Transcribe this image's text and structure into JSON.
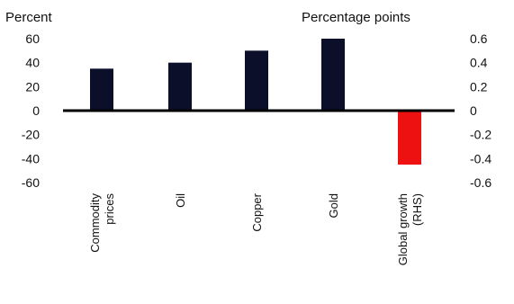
{
  "chart_data": {
    "type": "bar",
    "title": "",
    "left_axis_unit": "Percent",
    "right_axis_unit": "Percentage points",
    "categories": [
      [
        "Commodity",
        "prices"
      ],
      [
        "Oil"
      ],
      [
        "Copper"
      ],
      [
        "Gold"
      ],
      [
        "Global growth",
        "(RHS)"
      ]
    ],
    "series": [
      {
        "values": [
          35,
          40,
          50,
          60,
          null
        ],
        "color": "#0b0f2a",
        "axis": "left"
      },
      {
        "values": [
          null,
          null,
          null,
          null,
          -0.45
        ],
        "color": "#ee1111",
        "axis": "right"
      }
    ],
    "left_axis": {
      "ylim": [
        -60,
        60
      ],
      "ticks": [
        "60",
        "40",
        "20",
        "0",
        "-20",
        "-40",
        "-60"
      ]
    },
    "right_axis": {
      "ylim": [
        -0.6,
        0.6
      ],
      "ticks": [
        "0.6",
        "0.4",
        "0.2",
        "0",
        "-0.2",
        "-0.4",
        "-0.6"
      ]
    },
    "grid": false,
    "legend": "none"
  }
}
